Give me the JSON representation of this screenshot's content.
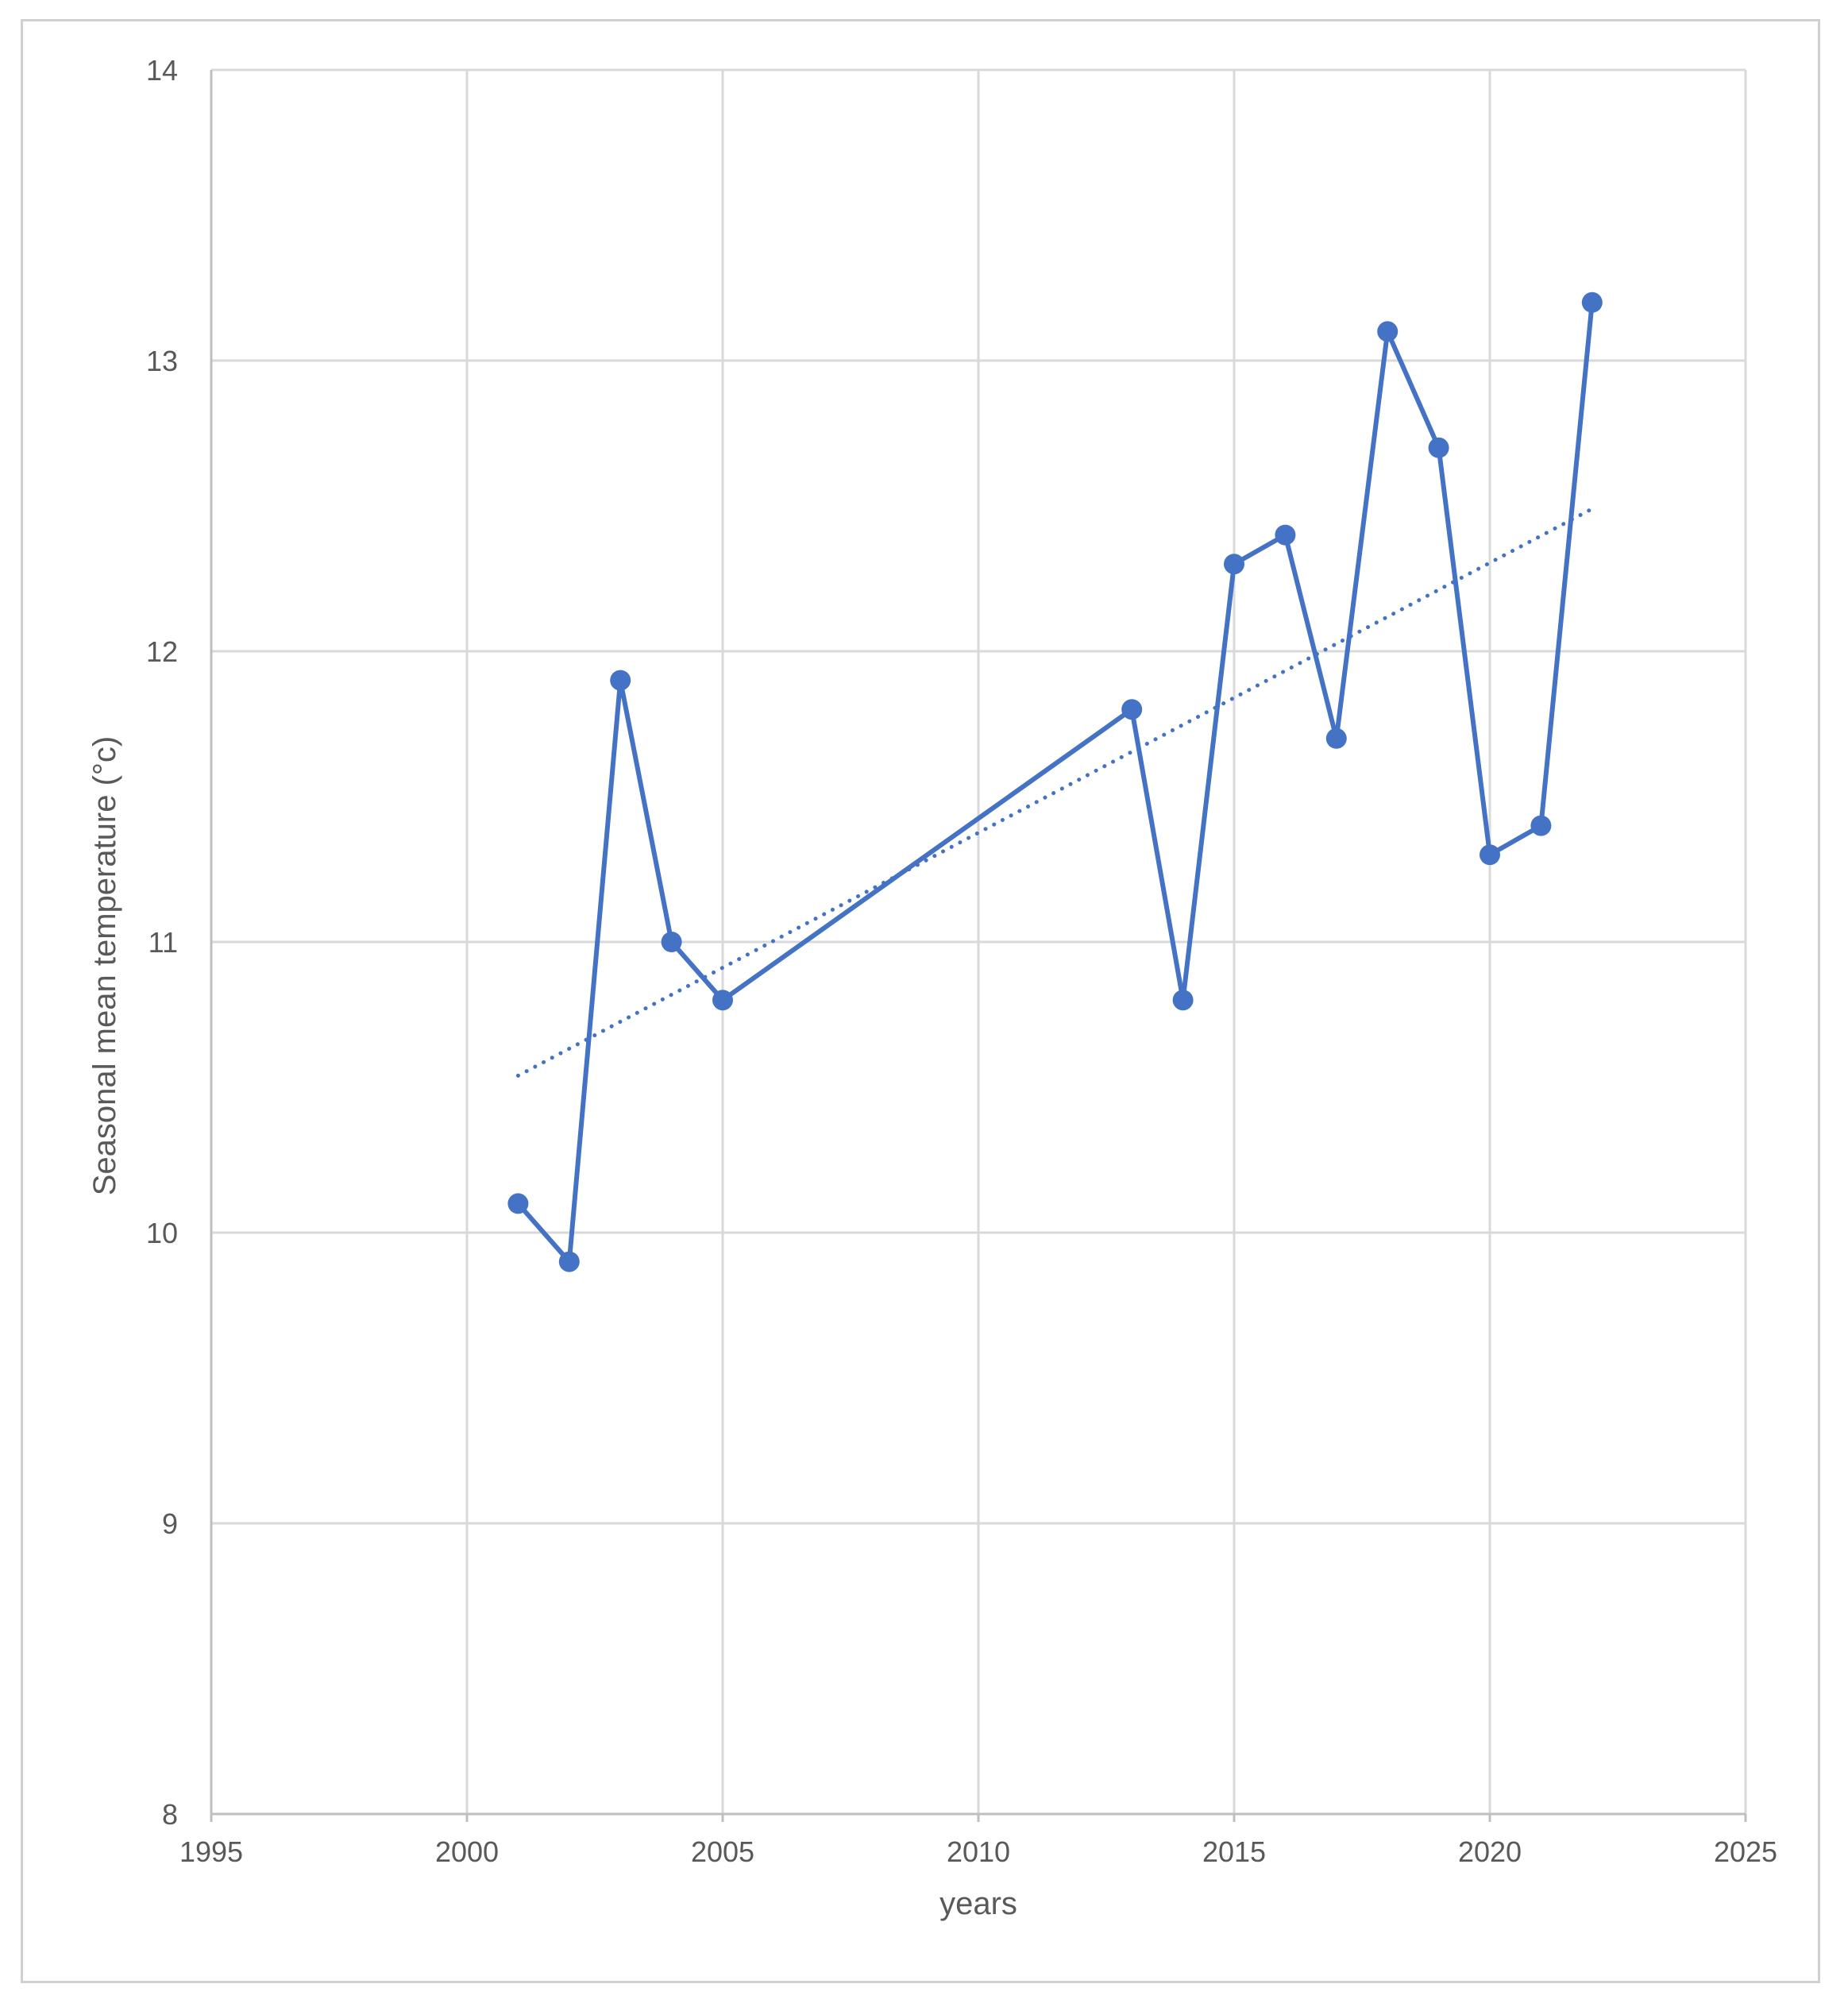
{
  "chart_data": {
    "type": "line",
    "xlabel": "years",
    "ylabel": "Seasonal mean  temperature (°c)",
    "xlim": [
      1995,
      2025
    ],
    "ylim": [
      8,
      14
    ],
    "xticks": [
      1995,
      2000,
      2005,
      2010,
      2015,
      2020,
      2025
    ],
    "yticks": [
      8,
      9,
      10,
      11,
      12,
      13,
      14
    ],
    "grid": true,
    "legend": "none",
    "series": [
      {
        "x": [
          2001,
          2002,
          2003,
          2004,
          2005,
          2013,
          2014,
          2015,
          2016,
          2017,
          2018,
          2019,
          2020,
          2021,
          2022
        ],
        "values": [
          10.1,
          9.9,
          11.9,
          11.0,
          10.8,
          11.8,
          10.8,
          12.3,
          12.4,
          11.7,
          13.1,
          12.7,
          11.3,
          11.4,
          13.2
        ],
        "color": "#4472c4",
        "markers": true
      }
    ],
    "trendline": {
      "type": "linear",
      "style": "dotted",
      "color": "#4472c4",
      "x": [
        2001,
        2022
      ],
      "values": [
        10.54,
        12.49
      ]
    }
  }
}
